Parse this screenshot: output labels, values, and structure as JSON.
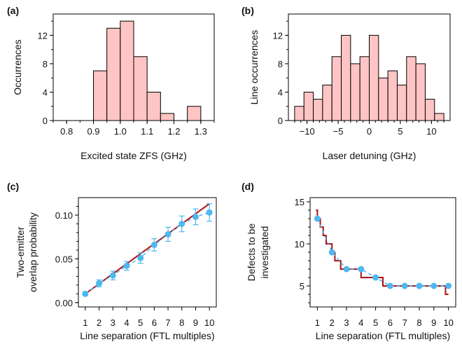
{
  "chart_data": [
    {
      "panel": "(a)",
      "type": "bar",
      "xlabel": "Excited state ZFS (GHz)",
      "ylabel": "Occurrences",
      "xlim": [
        0.75,
        1.35
      ],
      "ylim": [
        0,
        15
      ],
      "xticks": [
        "0.8",
        "0.9",
        "1.0",
        "1.1",
        "1.2",
        "1.3"
      ],
      "yticks": [
        "0",
        "4",
        "8",
        "12"
      ],
      "bin_width": 0.05,
      "bin_starts": [
        0.9,
        0.95,
        1.0,
        1.05,
        1.1,
        1.15,
        1.2,
        1.25
      ],
      "values": [
        7,
        13,
        14,
        9,
        4,
        1,
        0,
        2
      ],
      "fill_color": "#ffc4c4",
      "edge_color": "#000000"
    },
    {
      "panel": "(b)",
      "type": "bar",
      "xlabel": "Laser detuning (GHz)",
      "ylabel": "Line occurrences",
      "xlim": [
        -13,
        13
      ],
      "ylim": [
        0,
        15
      ],
      "xticks": [
        "-10",
        "-5",
        "0",
        "5",
        "10"
      ],
      "yticks": [
        "0",
        "4",
        "8",
        "12"
      ],
      "bin_width": 1.5,
      "bin_starts": [
        -12.0,
        -10.5,
        -9.0,
        -7.5,
        -6.0,
        -4.5,
        -3.0,
        -1.5,
        0.0,
        1.5,
        3.0,
        4.5,
        6.0,
        7.5,
        9.0,
        10.5
      ],
      "values": [
        2,
        4,
        3,
        5,
        9,
        12,
        8,
        9,
        12,
        6,
        7,
        5,
        9,
        8,
        3,
        1
      ],
      "fill_color": "#ffc4c4",
      "edge_color": "#000000"
    },
    {
      "panel": "(c)",
      "type": "scatter",
      "xlabel": "Line separation (FTL multiples)",
      "ylabel": [
        "Two-emitter",
        "overlap probability"
      ],
      "xlim": [
        0.5,
        10.5
      ],
      "ylim": [
        -0.005,
        0.12
      ],
      "xticks": [
        "1",
        "2",
        "3",
        "4",
        "5",
        "6",
        "7",
        "8",
        "9",
        "10"
      ],
      "yticks": [
        "0.00",
        "0.05",
        "0.10"
      ],
      "x": [
        1,
        2,
        3,
        4,
        5,
        6,
        7,
        8,
        9,
        10
      ],
      "y": [
        0.01,
        0.022,
        0.031,
        0.042,
        0.051,
        0.066,
        0.078,
        0.09,
        0.098,
        0.103
      ],
      "yerr": [
        0.002,
        0.004,
        0.005,
        0.005,
        0.006,
        0.007,
        0.008,
        0.009,
        0.009,
        0.01
      ],
      "fit_line": {
        "x": [
          1,
          10
        ],
        "y": [
          0.01,
          0.113
        ]
      },
      "point_color": "#4db8f0",
      "line_color": "#b01010"
    },
    {
      "panel": "(d)",
      "type": "line",
      "xlabel": "Line separation (FTL multiples)",
      "ylabel": [
        "Defects to be",
        "investigated"
      ],
      "xlim": [
        0.5,
        10.5
      ],
      "ylim": [
        2.5,
        15.5
      ],
      "xticks": [
        "1",
        "2",
        "3",
        "4",
        "5",
        "6",
        "7",
        "8",
        "9",
        "10"
      ],
      "yticks": [
        "5",
        "10",
        "15"
      ],
      "x": [
        1,
        2,
        3,
        4,
        5,
        6,
        7,
        8,
        9,
        10
      ],
      "y": [
        13,
        9,
        7,
        7,
        6,
        5,
        5,
        5,
        5,
        5
      ],
      "step_line": {
        "x": [
          0.9,
          1.0,
          1.2,
          1.4,
          1.6,
          1.8,
          2.0,
          2.2,
          2.4,
          2.6,
          2.8,
          3.0,
          3.5,
          3.8,
          4.0,
          5.0,
          5.5,
          6.0,
          9.5,
          9.8,
          10.0
        ],
        "y": [
          14,
          13,
          12,
          11,
          10,
          10,
          9,
          8,
          8,
          7,
          7,
          7,
          7,
          7,
          6,
          6,
          5,
          5,
          5,
          4,
          4
        ]
      },
      "point_color": "#4db8f0",
      "line_color": "#b01010"
    }
  ]
}
